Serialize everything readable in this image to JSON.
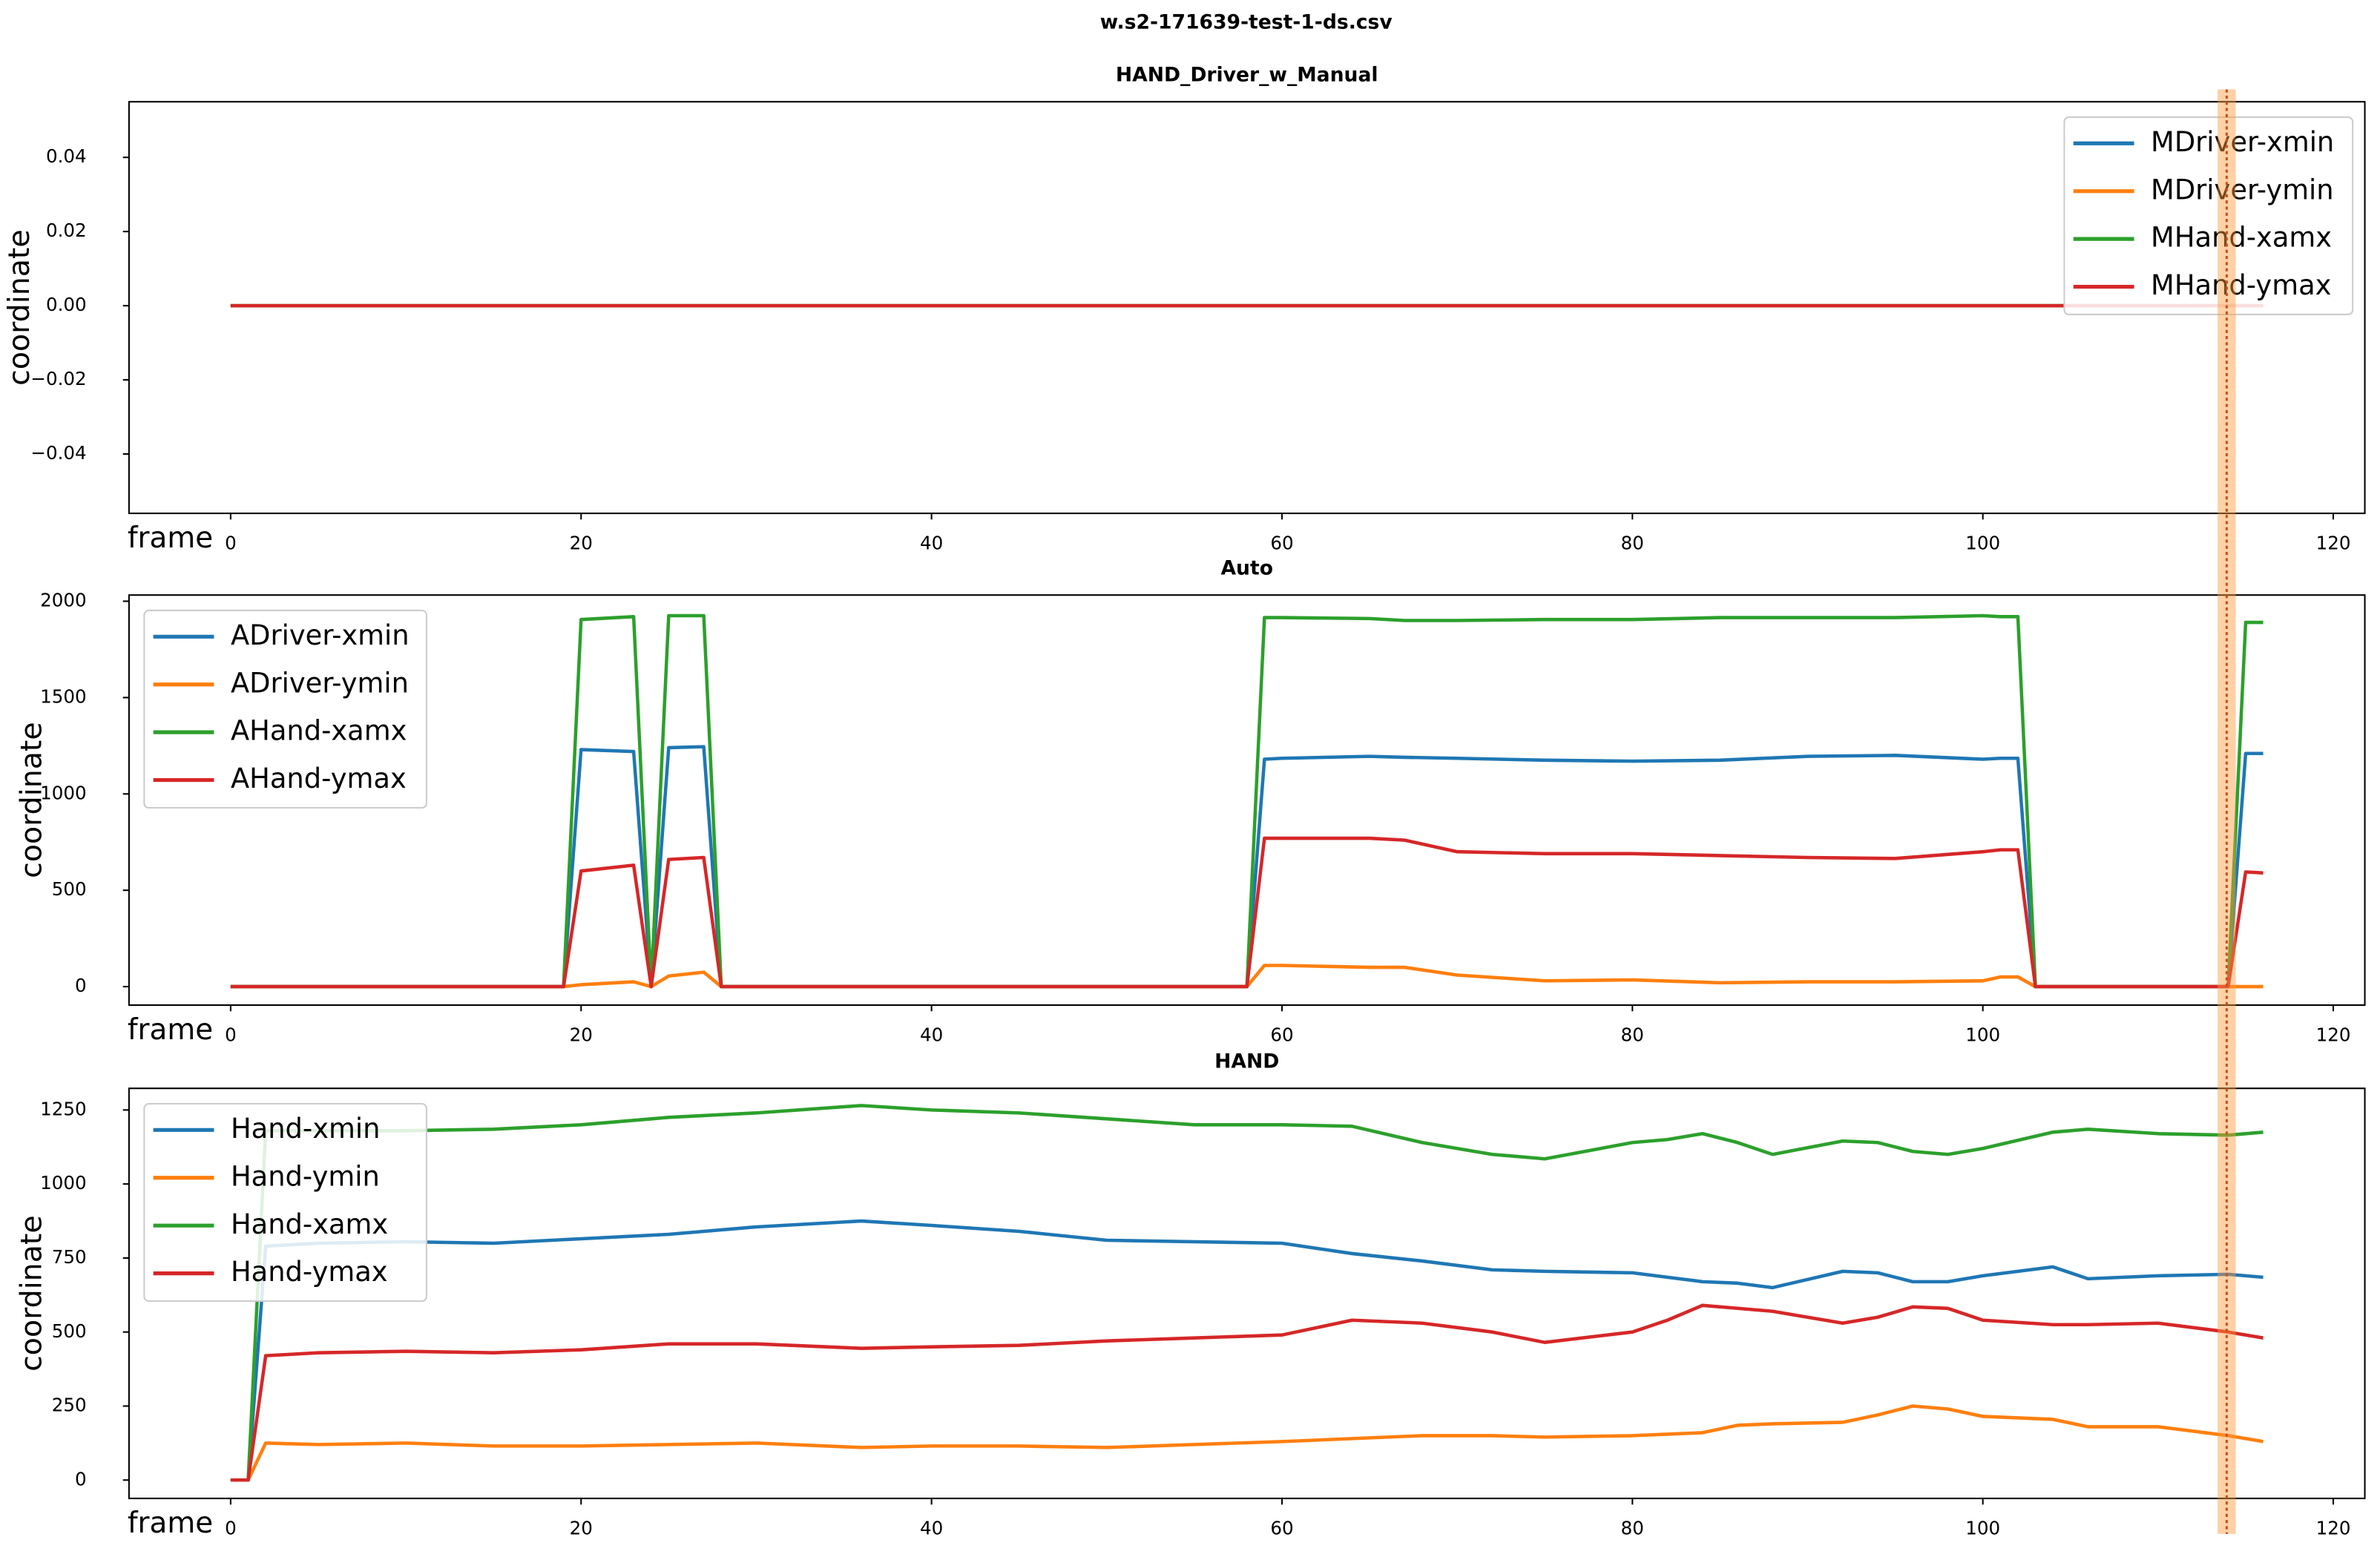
{
  "title": "w.s2-171639-test-1-ds.csv",
  "chart_data": [
    {
      "type": "line",
      "title": "HAND_Driver_w_Manual",
      "x_label": "frame",
      "y_label": "coordinate",
      "legend": "upper right",
      "xlim": [
        -5.8,
        121.8
      ],
      "xticks": [
        0,
        20,
        40,
        60,
        80,
        100,
        120
      ],
      "ylim": [
        -0.056,
        0.055
      ],
      "yticks": [
        {
          "value": -0.04,
          "label": "−0.04"
        },
        {
          "value": -0.02,
          "label": "−0.02"
        },
        {
          "value": 0,
          "label": "0.00"
        },
        {
          "value": 0.02,
          "label": "0.02"
        },
        {
          "value": 0.04,
          "label": "0.04"
        }
      ],
      "x": [
        0,
        116
      ],
      "series": [
        {
          "name": "MDriver-xmin",
          "color": "#1f77b4",
          "values": [
            0,
            0
          ]
        },
        {
          "name": "MDriver-ymin",
          "color": "#ff7f0e",
          "values": [
            0,
            0
          ]
        },
        {
          "name": "MHand-xamx",
          "color": "#2ca02c",
          "values": [
            0,
            0
          ]
        },
        {
          "name": "MHand-ymax",
          "color": "#d62728",
          "values": [
            0,
            0
          ]
        }
      ]
    },
    {
      "type": "line",
      "title": "Auto",
      "x_label": "frame",
      "y_label": "coordinate",
      "legend": "upper left",
      "xlim": [
        -5.8,
        121.8
      ],
      "xticks": [
        0,
        20,
        40,
        60,
        80,
        100,
        120
      ],
      "ylim": [
        -96,
        2032
      ],
      "yticks": [
        0,
        500,
        1000,
        1500,
        2000
      ],
      "x": [
        0,
        19,
        20,
        23,
        24,
        25,
        27,
        28,
        58,
        59,
        60,
        65,
        67,
        70,
        75,
        80,
        85,
        90,
        95,
        100,
        101,
        102,
        103,
        114,
        115,
        116
      ],
      "series": [
        {
          "name": "ADriver-xmin",
          "color": "#1f77b4",
          "values": [
            0,
            0,
            1230,
            1220,
            0,
            1240,
            1245,
            0,
            0,
            1180,
            1185,
            1195,
            1190,
            1185,
            1175,
            1170,
            1175,
            1195,
            1200,
            1180,
            1185,
            1185,
            0,
            0,
            1210,
            1210
          ]
        },
        {
          "name": "ADriver-ymin",
          "color": "#ff7f0e",
          "values": [
            0,
            0,
            10,
            25,
            0,
            55,
            75,
            0,
            0,
            110,
            110,
            100,
            100,
            60,
            30,
            35,
            20,
            25,
            25,
            30,
            50,
            50,
            0,
            0,
            0,
            0
          ]
        },
        {
          "name": "AHand-xamx",
          "color": "#2ca02c",
          "values": [
            0,
            0,
            1905,
            1920,
            0,
            1925,
            1925,
            0,
            0,
            1915,
            1915,
            1910,
            1900,
            1900,
            1905,
            1905,
            1915,
            1915,
            1915,
            1925,
            1920,
            1920,
            0,
            0,
            1890,
            1890
          ]
        },
        {
          "name": "AHand-ymax",
          "color": "#d62728",
          "values": [
            0,
            0,
            600,
            630,
            0,
            660,
            670,
            0,
            0,
            770,
            770,
            770,
            760,
            700,
            690,
            690,
            680,
            670,
            665,
            700,
            710,
            710,
            0,
            0,
            595,
            590
          ]
        }
      ]
    },
    {
      "type": "line",
      "title": "HAND",
      "x_label": "frame",
      "y_label": "coordinate",
      "legend": "upper left",
      "xlim": [
        -5.8,
        121.8
      ],
      "xticks": [
        0,
        20,
        40,
        60,
        80,
        100,
        120
      ],
      "ylim": [
        -62,
        1323
      ],
      "yticks": [
        0,
        250,
        500,
        750,
        1000,
        1250
      ],
      "x": [
        0,
        1,
        2,
        5,
        10,
        15,
        20,
        25,
        30,
        36,
        40,
        45,
        50,
        55,
        60,
        64,
        68,
        72,
        75,
        80,
        82,
        84,
        86,
        88,
        92,
        94,
        96,
        98,
        100,
        104,
        106,
        110,
        114,
        116
      ],
      "series": [
        {
          "name": "Hand-xmin",
          "color": "#1f77b4",
          "values": [
            0,
            0,
            790,
            800,
            805,
            800,
            815,
            830,
            855,
            875,
            860,
            840,
            810,
            805,
            800,
            765,
            740,
            710,
            705,
            700,
            685,
            670,
            665,
            650,
            705,
            700,
            670,
            670,
            690,
            720,
            680,
            690,
            695,
            685
          ]
        },
        {
          "name": "Hand-ymin",
          "color": "#ff7f0e",
          "values": [
            0,
            0,
            125,
            120,
            125,
            115,
            115,
            120,
            125,
            110,
            115,
            115,
            110,
            120,
            130,
            140,
            150,
            150,
            145,
            150,
            155,
            160,
            185,
            190,
            195,
            220,
            250,
            240,
            215,
            205,
            180,
            180,
            150,
            130
          ]
        },
        {
          "name": "Hand-xamx",
          "color": "#2ca02c",
          "values": [
            0,
            0,
            1180,
            1180,
            1180,
            1185,
            1200,
            1225,
            1240,
            1265,
            1250,
            1240,
            1220,
            1200,
            1200,
            1195,
            1140,
            1100,
            1085,
            1140,
            1150,
            1170,
            1140,
            1100,
            1145,
            1140,
            1110,
            1100,
            1120,
            1175,
            1185,
            1170,
            1165,
            1175
          ]
        },
        {
          "name": "Hand-ymax",
          "color": "#d62728",
          "values": [
            0,
            0,
            420,
            430,
            435,
            430,
            440,
            460,
            460,
            445,
            450,
            455,
            470,
            480,
            490,
            540,
            530,
            500,
            465,
            500,
            540,
            590,
            580,
            570,
            530,
            550,
            585,
            580,
            540,
            525,
            525,
            530,
            500,
            480
          ]
        }
      ]
    }
  ]
}
